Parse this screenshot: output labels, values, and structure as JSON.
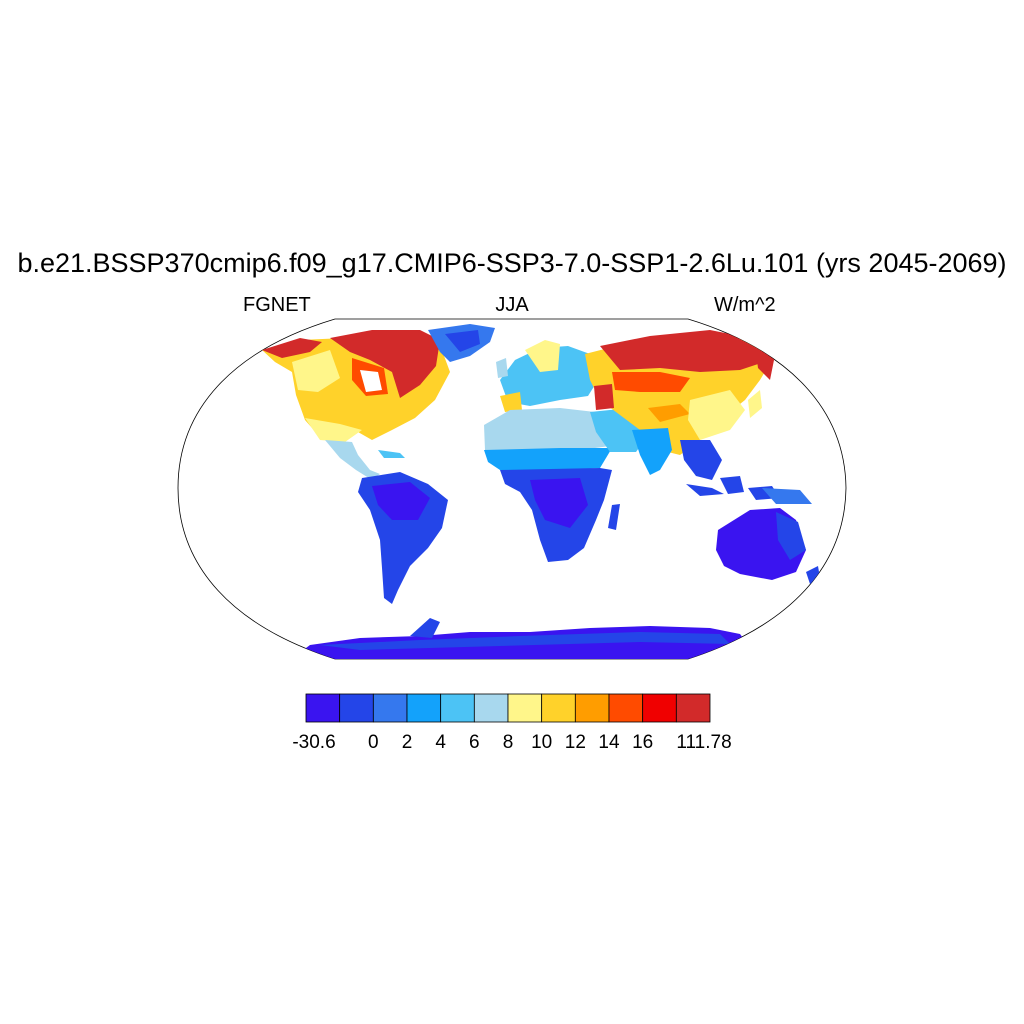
{
  "title": "b.e21.BSSP370cmip6.f09_g17.CMIP6-SSP3-7.0-SSP1-2.6Lu.101 (yrs 2045-2069)",
  "subtitle_left": "FGNET",
  "subtitle_center": "JJA",
  "subtitle_right": "W/m^2",
  "colorbar": {
    "tick_labels": [
      "-30.6",
      "0",
      "2",
      "4",
      "6",
      "8",
      "10",
      "12",
      "14",
      "16",
      "111.78"
    ],
    "colors": [
      "#3a14f0",
      "#2445e8",
      "#3578ee",
      "#13a2fb",
      "#4cc3f5",
      "#a8d8ee",
      "#fff68a",
      "#ffd22a",
      "#ff9d00",
      "#ff4b00",
      "#f00000",
      "#d22a2a"
    ]
  },
  "map": {
    "projection": "robinson",
    "ocean_color": "#ffffff",
    "land_regions": [
      {
        "name": "Arctic Canada",
        "value": "16 to 111.78"
      },
      {
        "name": "Eastern Siberia",
        "value": "16 to 111.78"
      },
      {
        "name": "Contiguous United States",
        "value": "10 to 14"
      },
      {
        "name": "Central Asia",
        "value": "10 to 14"
      },
      {
        "name": "Greenland",
        "value": "0 to 4"
      },
      {
        "name": "Sahara",
        "value": "6 to 8"
      },
      {
        "name": "Central Africa",
        "value": "-30.6 to 2"
      },
      {
        "name": "South America",
        "value": "-30.6 to 2"
      },
      {
        "name": "Australia",
        "value": "-30.6 to 2"
      },
      {
        "name": "Antarctica",
        "value": "-30.6 to 0"
      }
    ]
  }
}
